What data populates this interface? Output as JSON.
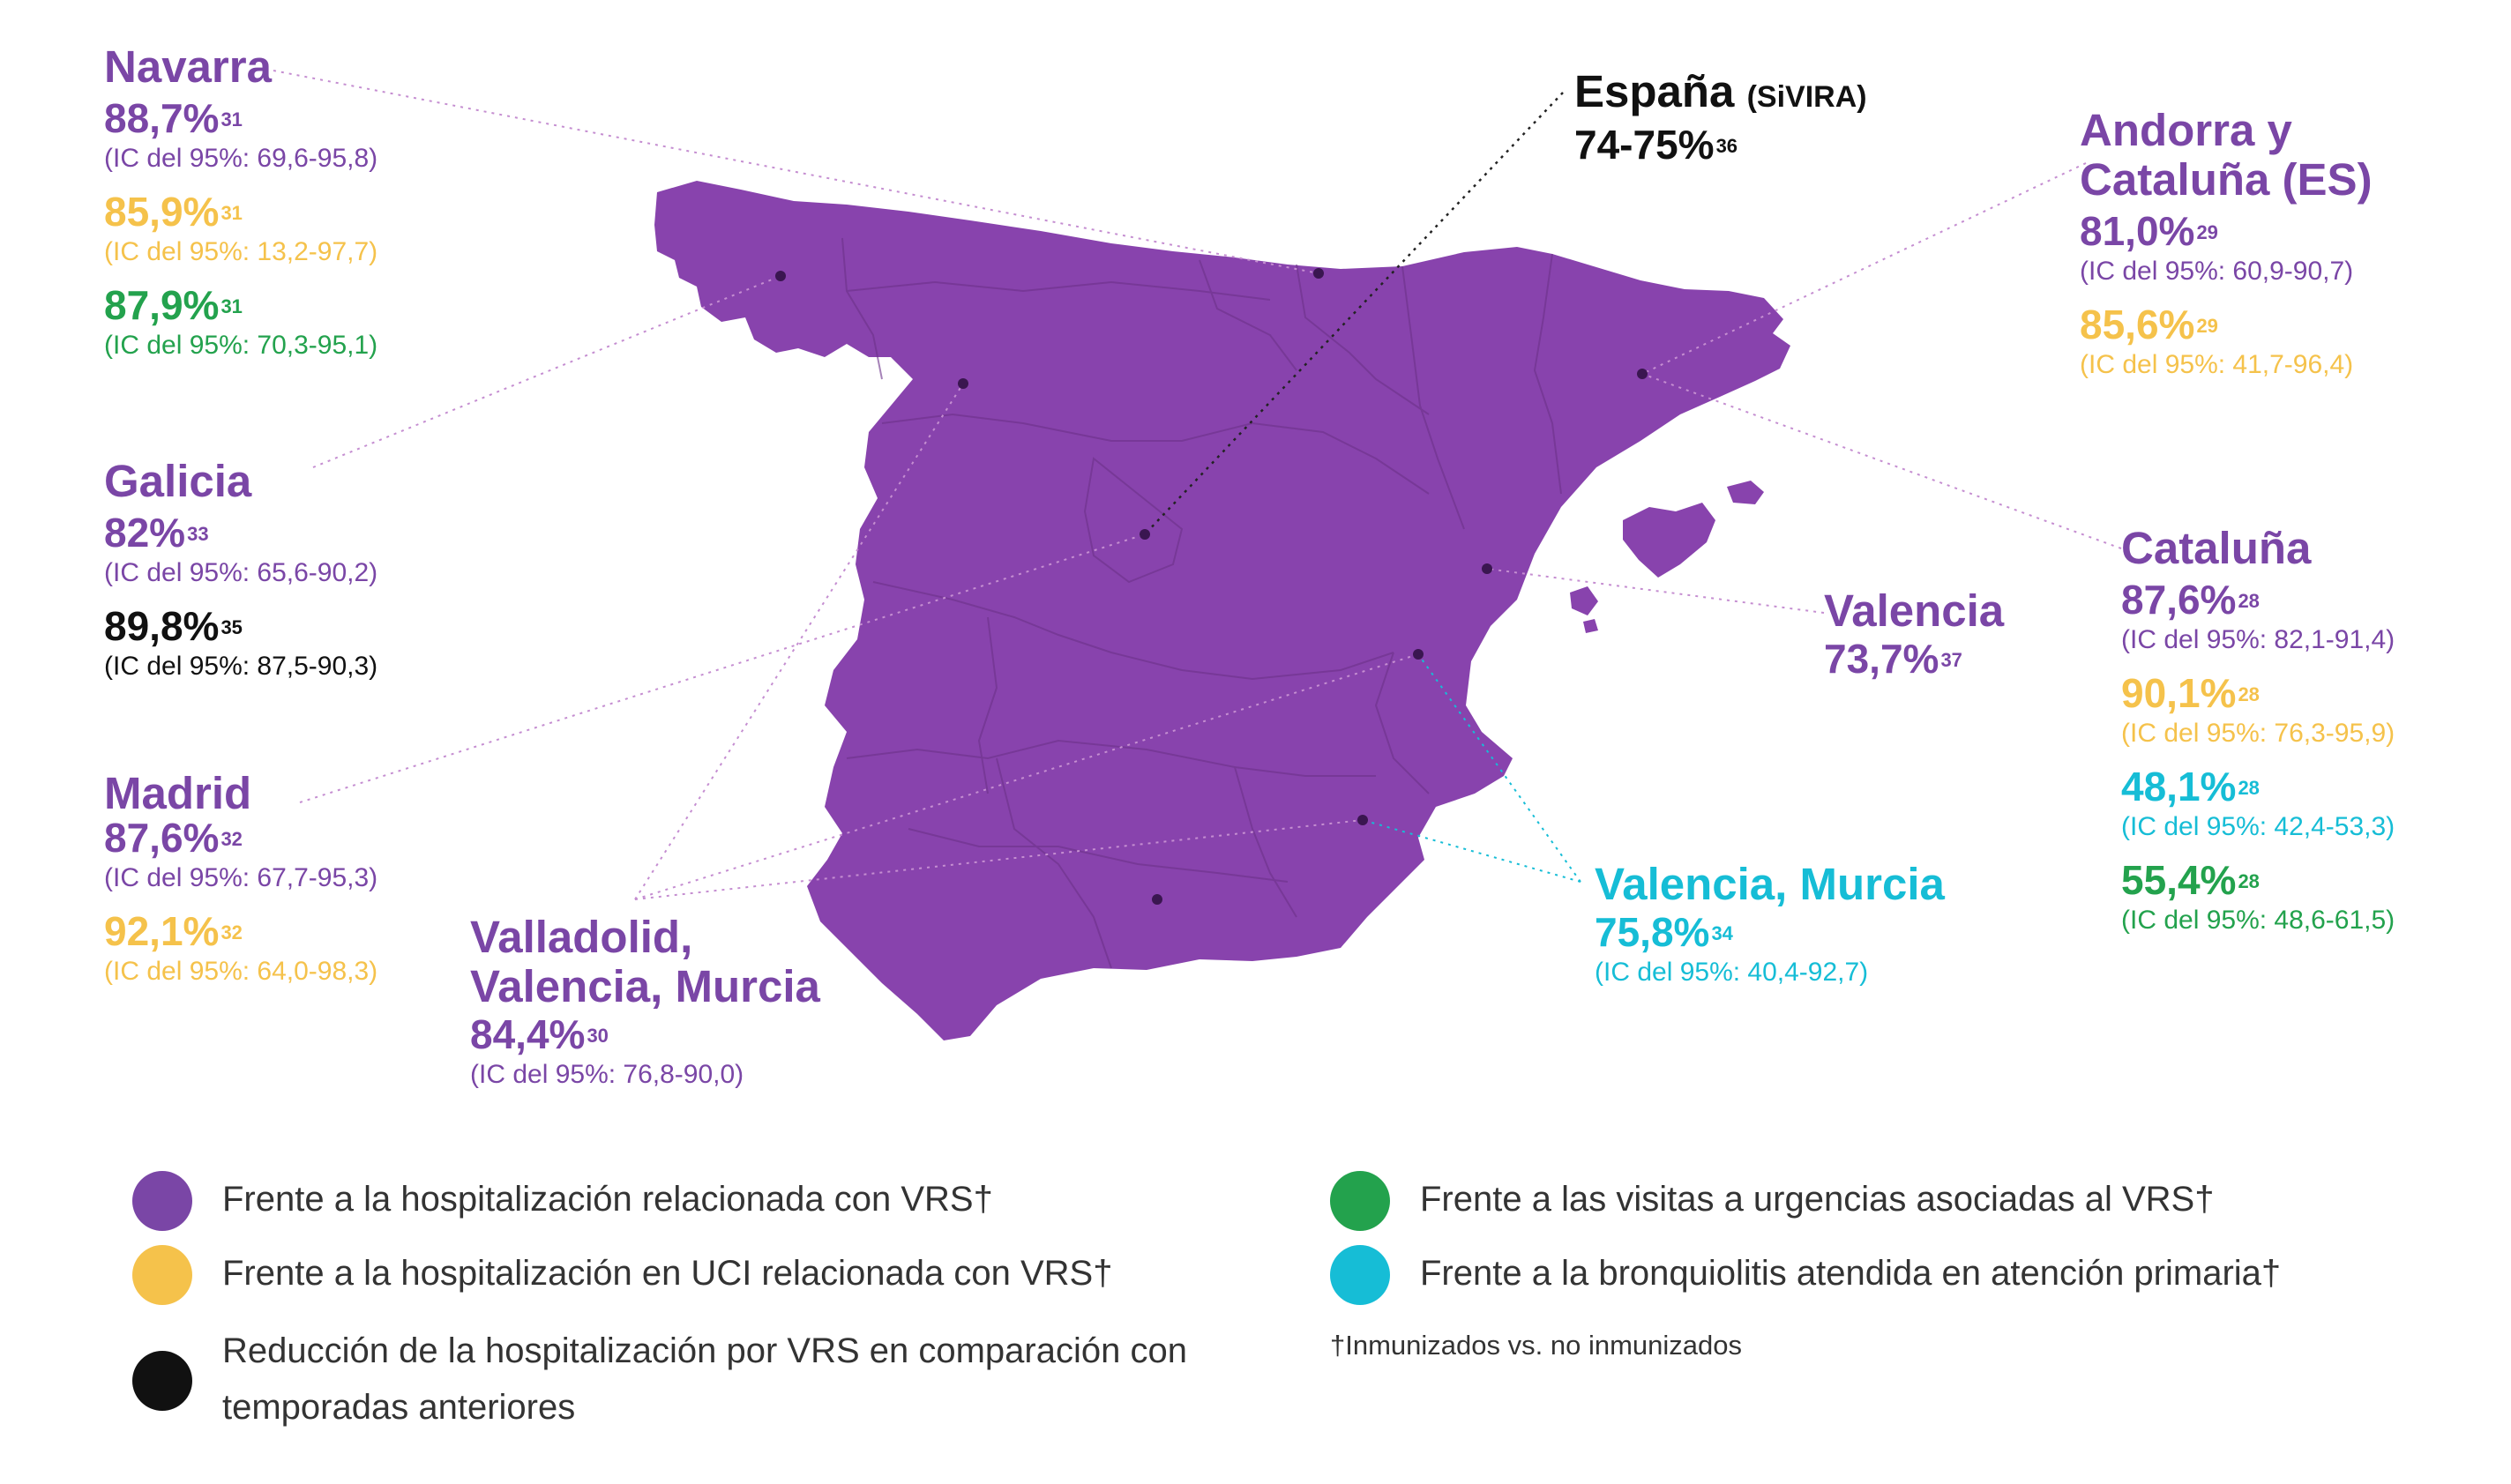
{
  "colors": {
    "purple": "#7a46a6",
    "map": "#8843ad",
    "yellow": "#f5c24b",
    "green": "#23a24d",
    "cyan": "#16bdd6",
    "black": "#111111"
  },
  "regions": {
    "navarra": {
      "name": "Navarra",
      "rows": [
        {
          "pct": "88,7%",
          "ref": "31",
          "ci": "(IC del 95%: 69,6-95,8)"
        },
        {
          "pct": "85,9%",
          "ref": "31",
          "ci": "(IC del 95%: 13,2-97,7)"
        },
        {
          "pct": "87,9%",
          "ref": "31",
          "ci": "(IC del 95%: 70,3-95,1)"
        }
      ]
    },
    "galicia": {
      "name": "Galicia",
      "rows": [
        {
          "pct": "82%",
          "ref": "33",
          "ci": "(IC del 95%: 65,6-90,2)"
        },
        {
          "pct": "89,8%",
          "ref": "35",
          "ci": "(IC del 95%: 87,5-90,3)"
        }
      ]
    },
    "madrid": {
      "name": "Madrid",
      "rows": [
        {
          "pct": "87,6%",
          "ref": "32",
          "ci": "(IC del 95%: 67,7-95,3)"
        },
        {
          "pct": "92,1%",
          "ref": "32",
          "ci": "(IC del 95%: 64,0-98,3)"
        }
      ]
    },
    "vvm": {
      "name_line1": "Valladolid,",
      "name_line2": "Valencia, Murcia",
      "rows": [
        {
          "pct": "84,4%",
          "ref": "30",
          "ci": "(IC del 95%: 76,8-90,0)"
        }
      ]
    },
    "espana": {
      "name": "España",
      "sub": "(SiVIRA)",
      "rows": [
        {
          "pct": "74-75%",
          "ref": "36"
        }
      ]
    },
    "andorra": {
      "name_line1": "Andorra y",
      "name_line2": "Cataluña (ES)",
      "rows": [
        {
          "pct": "81,0%",
          "ref": "29",
          "ci": "(IC del 95%: 60,9-90,7)"
        },
        {
          "pct": "85,6%",
          "ref": "29",
          "ci": "(IC del 95%: 41,7-96,4)"
        }
      ]
    },
    "cataluna": {
      "name": "Cataluña",
      "rows": [
        {
          "pct": "87,6%",
          "ref": "28",
          "ci": "(IC del 95%: 82,1-91,4)"
        },
        {
          "pct": "90,1%",
          "ref": "28",
          "ci": "(IC del 95%: 76,3-95,9)"
        },
        {
          "pct": "48,1%",
          "ref": "28",
          "ci": "(IC del 95%: 42,4-53,3)"
        },
        {
          "pct": "55,4%",
          "ref": "28",
          "ci": "(IC del 95%: 48,6-61,5)"
        }
      ]
    },
    "valencia": {
      "name": "Valencia",
      "rows": [
        {
          "pct": "73,7%",
          "ref": "37"
        }
      ]
    },
    "valmur": {
      "name": "Valencia, Murcia",
      "rows": [
        {
          "pct": "75,8%",
          "ref": "34",
          "ci": "(IC del 95%: 40,4-92,7)"
        }
      ]
    }
  },
  "legend": {
    "hosp": "Frente a la hospitalización relacionada con VRS†",
    "uci": "Frente a la hospitalización en UCI relacionada con VRS†",
    "reduccion": "Reducción de la hospitalización por VRS en comparación con temporadas anteriores",
    "urgencias": "Frente a las visitas a urgencias asociadas al VRS†",
    "bronquiolitis": "Frente a la bronquiolitis atendida en atención primaria†",
    "footnote": "†Inmunizados vs. no inmunizados"
  }
}
